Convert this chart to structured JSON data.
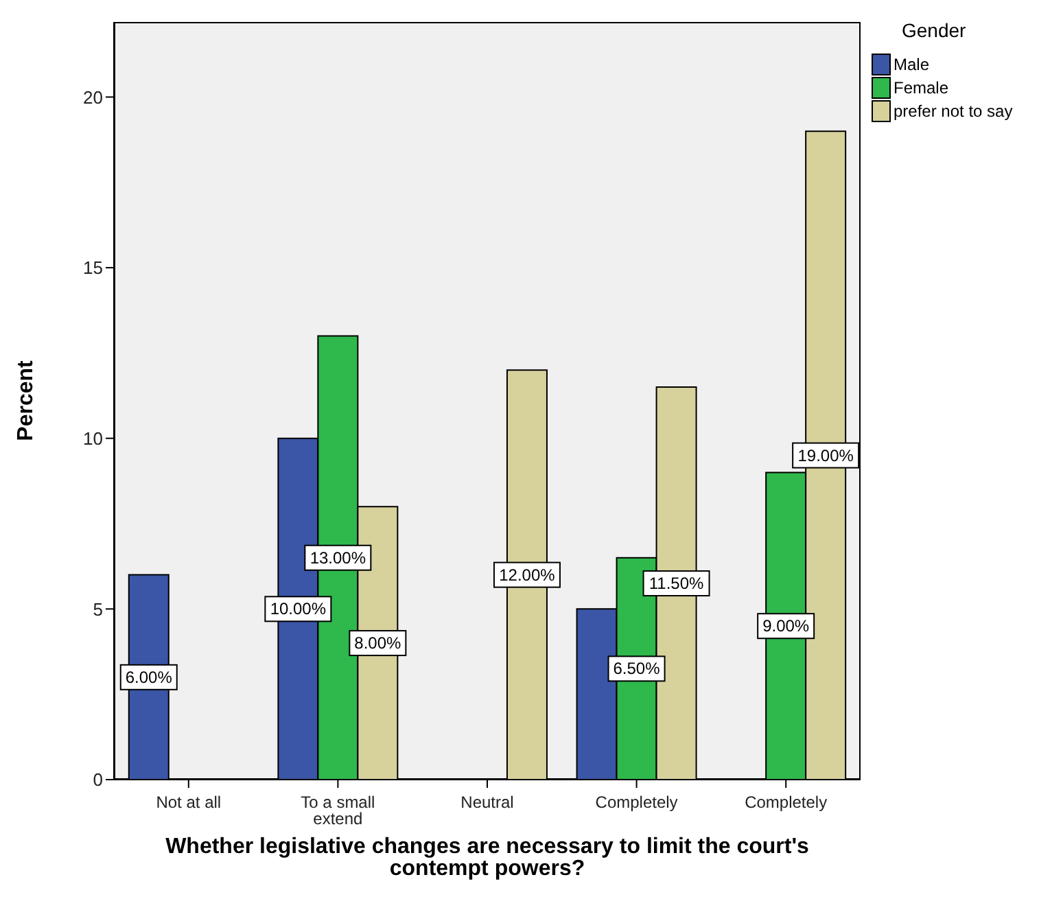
{
  "chart_data": {
    "type": "bar",
    "xlabel": "Whether legislative changes are necessary to limit the court's contempt powers?",
    "ylabel": "Percent",
    "legend_title": "Gender",
    "legend": "top right",
    "categories": [
      "Not at all",
      "To a small extend",
      "Neutral",
      "Completely",
      "Completely"
    ],
    "series": [
      {
        "name": "Male",
        "color": "#3b56a6",
        "values": [
          6,
          10,
          null,
          5,
          null
        ],
        "value_labels": [
          "6.00%",
          "10.00%",
          null,
          null,
          null
        ]
      },
      {
        "name": "Female",
        "color": "#2fb84c",
        "values": [
          null,
          13,
          null,
          6.5,
          9
        ],
        "value_labels": [
          null,
          "13.00%",
          null,
          "6.50%",
          "9.00%"
        ]
      },
      {
        "name": "prefer not to say",
        "color": "#d7d29c",
        "values": [
          null,
          8,
          12,
          11.5,
          19
        ],
        "value_labels": [
          null,
          "8.00%",
          "12.00%",
          "11.50%",
          "19.00%"
        ]
      }
    ],
    "ylim": [
      0,
      22.2
    ],
    "yticks": [
      0,
      5,
      10,
      15,
      20
    ]
  }
}
